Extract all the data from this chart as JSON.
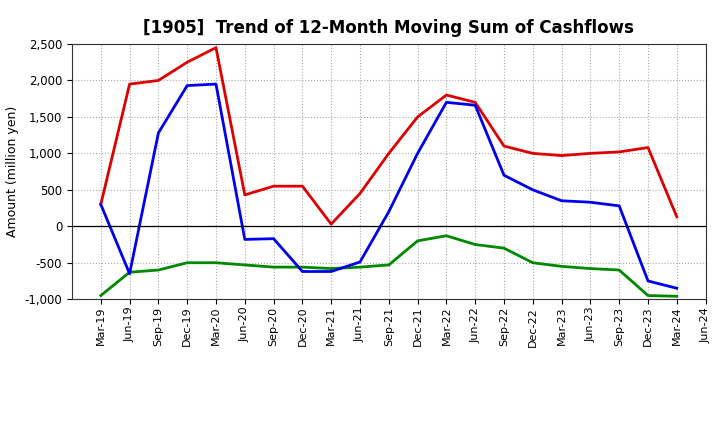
{
  "title": "[1905]  Trend of 12-Month Moving Sum of Cashflows",
  "ylabel": "Amount (million yen)",
  "ylim": [
    -1000,
    2500
  ],
  "yticks": [
    -1000,
    -500,
    0,
    500,
    1000,
    1500,
    2000,
    2500
  ],
  "x_labels": [
    "Mar-19",
    "Jun-19",
    "Sep-19",
    "Dec-19",
    "Mar-20",
    "Jun-20",
    "Sep-20",
    "Dec-20",
    "Mar-21",
    "Jun-21",
    "Sep-21",
    "Dec-21",
    "Mar-22",
    "Jun-22",
    "Sep-22",
    "Dec-22",
    "Mar-23",
    "Jun-23",
    "Sep-23",
    "Dec-23",
    "Mar-24",
    "Jun-24"
  ],
  "operating": [
    300,
    1950,
    2000,
    2250,
    2450,
    430,
    550,
    550,
    30,
    450,
    1000,
    1500,
    1800,
    1700,
    1100,
    1000,
    970,
    1000,
    1020,
    1080,
    130,
    null
  ],
  "investing": [
    -950,
    -630,
    -600,
    -500,
    -500,
    -530,
    -560,
    -560,
    -580,
    -560,
    -530,
    -200,
    -130,
    -250,
    -300,
    -500,
    -550,
    -580,
    -600,
    -950,
    -960,
    null
  ],
  "free": [
    300,
    -650,
    1280,
    1930,
    1950,
    -180,
    -170,
    -620,
    -620,
    -490,
    200,
    1000,
    1700,
    1660,
    700,
    500,
    350,
    330,
    280,
    -750,
    -850,
    null
  ],
  "operating_color": "#dd0000",
  "investing_color": "#008800",
  "free_color": "#0000ee",
  "background_color": "#ffffff",
  "grid_color": "#aaaaaa",
  "title_fontsize": 12,
  "axis_fontsize": 9,
  "legend_fontsize": 9.5
}
